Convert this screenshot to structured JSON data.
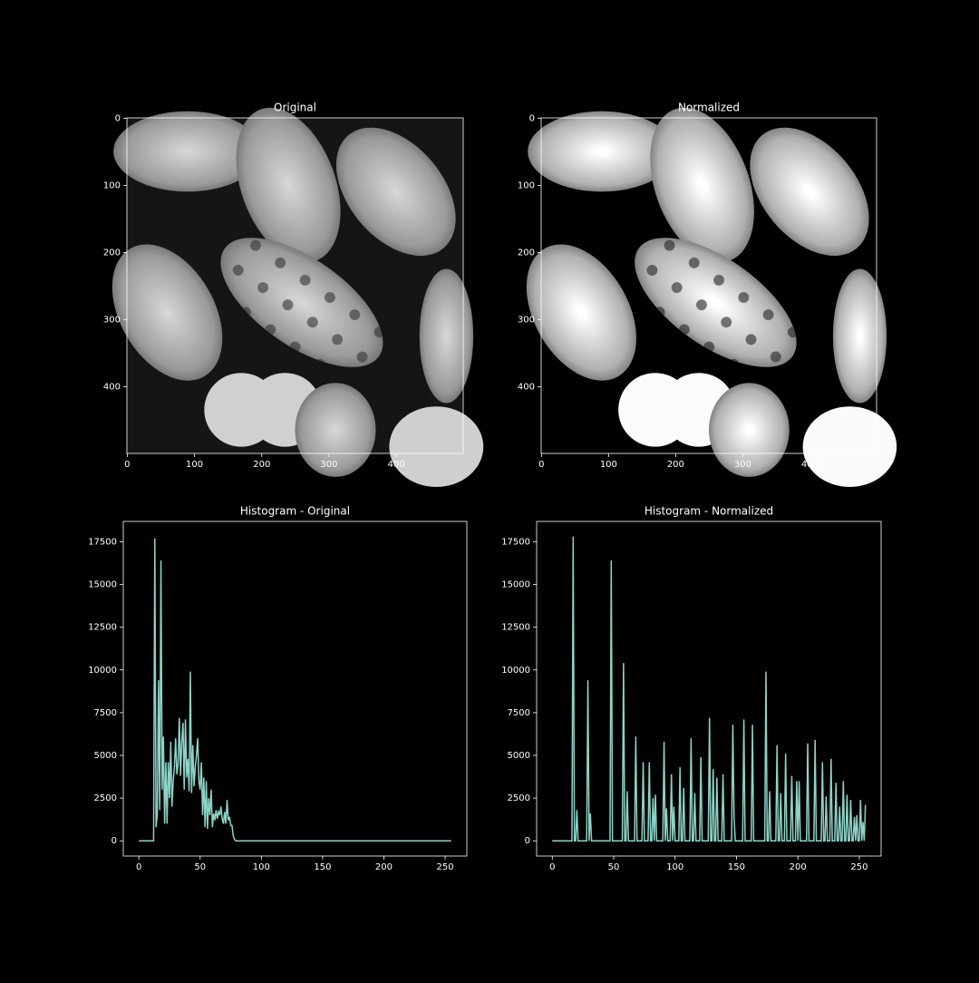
{
  "chart_data": [
    {
      "type": "image",
      "title": "Original",
      "xlim": [
        -0.5,
        499.5
      ],
      "ylim": [
        499.5,
        -0.5
      ],
      "xticks": [
        0,
        100,
        200,
        300,
        400
      ],
      "yticks": [
        0,
        100,
        200,
        300,
        400
      ]
    },
    {
      "type": "image",
      "title": "Normalized",
      "xlim": [
        -0.5,
        499.5
      ],
      "ylim": [
        499.5,
        -0.5
      ],
      "xticks": [
        0,
        100,
        200,
        300,
        400
      ],
      "yticks": [
        0,
        100,
        200,
        300,
        400
      ]
    },
    {
      "type": "line",
      "title": "Histogram - Original",
      "color": "#8dd3c7",
      "xlim": [
        -12.75,
        267.75
      ],
      "ylim": [
        -890,
        18690
      ],
      "xticks": [
        0,
        50,
        100,
        150,
        200,
        250
      ],
      "yticks": [
        0,
        2500,
        5000,
        7500,
        10000,
        12500,
        15000,
        17500
      ],
      "x": [
        0,
        12,
        13,
        14,
        15,
        16,
        17,
        18,
        19,
        20,
        21,
        22,
        23,
        24,
        25,
        26,
        27,
        28,
        29,
        30,
        31,
        32,
        33,
        34,
        35,
        36,
        37,
        38,
        39,
        40,
        41,
        42,
        43,
        44,
        45,
        46,
        47,
        48,
        49,
        50,
        51,
        52,
        53,
        54,
        55,
        56,
        57,
        58,
        59,
        60,
        61,
        62,
        63,
        64,
        65,
        66,
        67,
        68,
        69,
        70,
        71,
        72,
        73,
        74,
        75,
        76,
        77,
        78,
        79,
        255
      ],
      "values": [
        0,
        0,
        17700,
        800,
        1500,
        9400,
        1800,
        16400,
        3000,
        6100,
        1000,
        4600,
        1000,
        4600,
        2500,
        5800,
        2000,
        3500,
        4300,
        6000,
        3900,
        4500,
        7200,
        3800,
        5800,
        6900,
        3000,
        7100,
        3700,
        4800,
        2900,
        9900,
        2800,
        5600,
        3200,
        4300,
        5000,
        6000,
        3500,
        3000,
        4600,
        1500,
        3700,
        800,
        3500,
        700,
        2500,
        1500,
        3000,
        800,
        1600,
        1200,
        1800,
        1300,
        1700,
        1500,
        2000,
        1300,
        1000,
        1700,
        1000,
        2400,
        1200,
        1400,
        900,
        900,
        300,
        100,
        0,
        0
      ]
    },
    {
      "type": "line",
      "title": "Histogram - Normalized",
      "color": "#8dd3c7",
      "xlim": [
        -12.75,
        267.75
      ],
      "ylim": [
        -890,
        18690
      ],
      "xticks": [
        0,
        50,
        100,
        150,
        200,
        250
      ],
      "yticks": [
        0,
        2500,
        5000,
        7500,
        10000,
        12500,
        15000,
        17500
      ],
      "x": [
        0,
        16,
        17,
        18,
        19,
        20,
        21,
        28,
        29,
        30,
        31,
        32,
        47,
        48,
        49,
        57,
        58,
        59,
        60,
        61,
        62,
        67,
        68,
        69,
        73,
        74,
        75,
        78,
        79,
        80,
        81,
        82,
        83,
        84,
        85,
        90,
        91,
        92,
        93,
        94,
        96,
        97,
        98,
        99,
        100,
        103,
        104,
        105,
        106,
        107,
        108,
        112,
        113,
        114,
        115,
        116,
        117,
        120,
        121,
        122,
        127,
        128,
        129,
        130,
        131,
        132,
        133,
        134,
        135,
        138,
        139,
        140,
        146,
        147,
        148,
        149,
        155,
        156,
        157,
        162,
        163,
        164,
        173,
        174,
        175,
        176,
        177,
        178,
        182,
        183,
        184,
        185,
        186,
        187,
        189,
        190,
        191,
        194,
        195,
        196,
        198,
        199,
        200,
        201,
        202,
        207,
        208,
        209,
        213,
        214,
        215,
        219,
        220,
        221,
        222,
        223,
        224,
        226,
        227,
        228,
        230,
        231,
        232,
        233,
        234,
        235,
        236,
        237,
        238,
        239,
        240,
        241,
        242,
        243,
        244,
        245,
        246,
        247,
        248,
        249,
        250,
        251,
        252,
        253,
        254,
        255
      ],
      "values": [
        0,
        0,
        17800,
        0,
        0,
        1800,
        0,
        0,
        9400,
        0,
        1600,
        0,
        0,
        16400,
        0,
        0,
        10400,
        0,
        0,
        2900,
        0,
        0,
        6100,
        0,
        0,
        4600,
        0,
        0,
        4600,
        0,
        0,
        2500,
        0,
        2700,
        0,
        0,
        5800,
        0,
        1900,
        0,
        0,
        3900,
        0,
        2000,
        0,
        0,
        4300,
        0,
        0,
        3100,
        0,
        0,
        6000,
        0,
        0,
        2800,
        0,
        0,
        4900,
        0,
        0,
        7200,
        0,
        0,
        4200,
        0,
        0,
        3700,
        0,
        0,
        3900,
        0,
        0,
        6800,
        1400,
        0,
        0,
        7100,
        0,
        0,
        6800,
        0,
        0,
        9900,
        0,
        0,
        2900,
        0,
        0,
        5600,
        0,
        0,
        2800,
        0,
        0,
        5100,
        0,
        0,
        3800,
        0,
        0,
        3500,
        0,
        3500,
        0,
        0,
        5700,
        0,
        0,
        5900,
        0,
        0,
        4600,
        0,
        0,
        2600,
        0,
        0,
        4800,
        0,
        0,
        3400,
        0,
        0,
        2000,
        0,
        0,
        3500,
        0,
        0,
        2700,
        0,
        0,
        2400,
        0,
        0,
        1400,
        0,
        1500,
        0,
        0,
        2400,
        0,
        1100,
        0,
        2100
      ]
    }
  ]
}
